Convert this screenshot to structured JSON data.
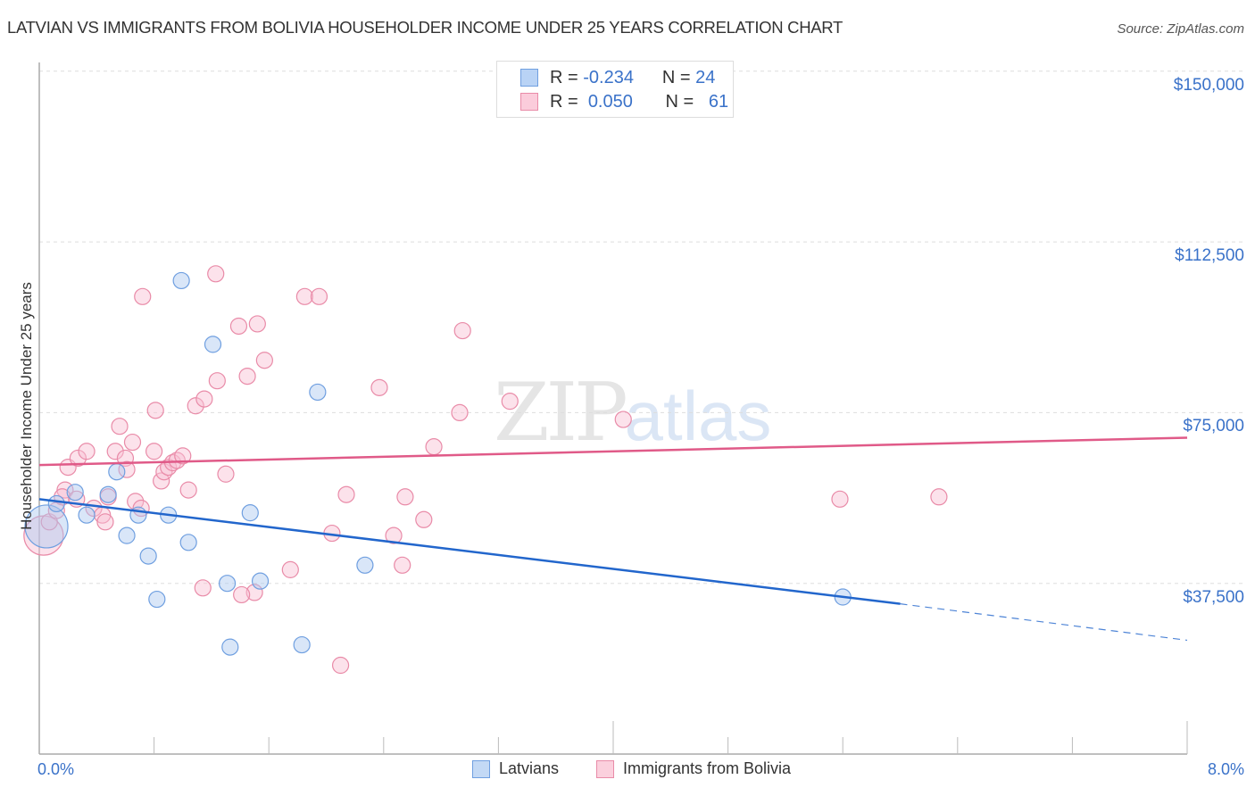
{
  "header": {
    "title": "LATVIAN VS IMMIGRANTS FROM BOLIVIA HOUSEHOLDER INCOME UNDER 25 YEARS CORRELATION CHART",
    "source": "Source: ZipAtlas.com"
  },
  "legend_stats": {
    "rows": [
      {
        "r_label": "R =",
        "r_value": "-0.234",
        "n_label": "N =",
        "n_value": "24",
        "color": "#a9c8f0",
        "border": "#6f9fe0"
      },
      {
        "r_label": "R =",
        "r_value": " 0.050",
        "n_label": "N =",
        "n_value": " 61",
        "color": "#f9c3d4",
        "border": "#e98ba8"
      }
    ]
  },
  "axes": {
    "y_label": "Householder Income Under 25 years",
    "y_ticks": [
      "$150,000",
      "$112,500",
      "$75,000",
      "$37,500"
    ],
    "x_ticks": [
      "0.0%",
      "8.0%"
    ]
  },
  "bottom_legend": {
    "items": [
      {
        "label": "Latvians",
        "color": "#c3d9f5",
        "border": "#6f9fe0"
      },
      {
        "label": "Immigrants from Bolivia",
        "color": "#fbd0dd",
        "border": "#e98ba8"
      }
    ]
  },
  "watermark": {
    "zip": "ZIP",
    "atlas": "atlas"
  },
  "colors": {
    "latvians_line": "#2266cc",
    "bolivia_line": "#e05a88",
    "tick_text": "#3a72c9",
    "grid": "#dddddd"
  },
  "chart_data": {
    "type": "scatter",
    "title": "LATVIAN VS IMMIGRANTS FROM BOLIVIA HOUSEHOLDER INCOME UNDER 25 YEARS CORRELATION CHART",
    "xlabel": "",
    "ylabel": "Householder Income Under 25 years",
    "xlim": [
      0,
      8
    ],
    "ylim": [
      0,
      153000
    ],
    "y_ticks": [
      37500,
      75000,
      112500,
      150000
    ],
    "x_ticks": [
      0,
      8
    ],
    "grid": true,
    "legend_position": "top-center",
    "series": [
      {
        "name": "Latvians",
        "R": -0.234,
        "N": 24,
        "trend": {
          "x0": 0,
          "y0": 56000,
          "x1": 6.0,
          "y1": 33000,
          "dashed_to_x": 8.0,
          "dashed_to_y": 25000
        },
        "points": [
          {
            "x": 0.05,
            "y": 50000,
            "size": 24
          },
          {
            "x": 0.12,
            "y": 55000
          },
          {
            "x": 0.25,
            "y": 57500
          },
          {
            "x": 0.33,
            "y": 52500
          },
          {
            "x": 0.48,
            "y": 57000
          },
          {
            "x": 0.54,
            "y": 62000
          },
          {
            "x": 0.61,
            "y": 48000
          },
          {
            "x": 0.69,
            "y": 52500
          },
          {
            "x": 0.76,
            "y": 43500
          },
          {
            "x": 0.82,
            "y": 34000
          },
          {
            "x": 0.9,
            "y": 52500
          },
          {
            "x": 0.99,
            "y": 104000
          },
          {
            "x": 1.04,
            "y": 46500
          },
          {
            "x": 1.21,
            "y": 90000
          },
          {
            "x": 1.31,
            "y": 37500
          },
          {
            "x": 1.33,
            "y": 23500
          },
          {
            "x": 1.47,
            "y": 53000
          },
          {
            "x": 1.54,
            "y": 38000
          },
          {
            "x": 1.83,
            "y": 24000
          },
          {
            "x": 1.94,
            "y": 79500
          },
          {
            "x": 2.27,
            "y": 41500
          },
          {
            "x": 5.6,
            "y": 34500
          }
        ]
      },
      {
        "name": "Immigrants from Bolivia",
        "R": 0.05,
        "N": 61,
        "trend": {
          "x0": 0,
          "y0": 63500,
          "x1": 8.0,
          "y1": 69500
        },
        "points": [
          {
            "x": 0.03,
            "y": 48000,
            "size": 22
          },
          {
            "x": 0.07,
            "y": 51000
          },
          {
            "x": 0.12,
            "y": 53500
          },
          {
            "x": 0.18,
            "y": 58000
          },
          {
            "x": 0.16,
            "y": 56500
          },
          {
            "x": 0.2,
            "y": 63000
          },
          {
            "x": 0.26,
            "y": 56000
          },
          {
            "x": 0.27,
            "y": 65000
          },
          {
            "x": 0.33,
            "y": 66500
          },
          {
            "x": 0.38,
            "y": 54000
          },
          {
            "x": 0.44,
            "y": 52500
          },
          {
            "x": 0.46,
            "y": 51000
          },
          {
            "x": 0.48,
            "y": 56500
          },
          {
            "x": 0.53,
            "y": 66500
          },
          {
            "x": 0.56,
            "y": 72000
          },
          {
            "x": 0.6,
            "y": 65000
          },
          {
            "x": 0.61,
            "y": 62500
          },
          {
            "x": 0.65,
            "y": 68500
          },
          {
            "x": 0.67,
            "y": 55500
          },
          {
            "x": 0.71,
            "y": 54000
          },
          {
            "x": 0.72,
            "y": 100500
          },
          {
            "x": 0.8,
            "y": 66500
          },
          {
            "x": 0.81,
            "y": 75500
          },
          {
            "x": 0.85,
            "y": 60000
          },
          {
            "x": 0.87,
            "y": 62000
          },
          {
            "x": 0.9,
            "y": 63000
          },
          {
            "x": 0.93,
            "y": 64000
          },
          {
            "x": 0.96,
            "y": 64500
          },
          {
            "x": 1.0,
            "y": 65500
          },
          {
            "x": 1.04,
            "y": 58000
          },
          {
            "x": 1.09,
            "y": 76500
          },
          {
            "x": 1.15,
            "y": 78000
          },
          {
            "x": 1.14,
            "y": 36500
          },
          {
            "x": 1.23,
            "y": 105500
          },
          {
            "x": 1.24,
            "y": 82000
          },
          {
            "x": 1.3,
            "y": 61500
          },
          {
            "x": 1.39,
            "y": 94000
          },
          {
            "x": 1.45,
            "y": 83000
          },
          {
            "x": 1.5,
            "y": 35500
          },
          {
            "x": 1.41,
            "y": 35000
          },
          {
            "x": 1.52,
            "y": 94500
          },
          {
            "x": 1.57,
            "y": 86500
          },
          {
            "x": 1.75,
            "y": 40500
          },
          {
            "x": 1.85,
            "y": 100500
          },
          {
            "x": 1.95,
            "y": 100500
          },
          {
            "x": 2.04,
            "y": 48500
          },
          {
            "x": 2.1,
            "y": 19500
          },
          {
            "x": 2.14,
            "y": 57000
          },
          {
            "x": 2.37,
            "y": 80500
          },
          {
            "x": 2.47,
            "y": 48000
          },
          {
            "x": 2.53,
            "y": 41500
          },
          {
            "x": 2.55,
            "y": 56500
          },
          {
            "x": 2.68,
            "y": 51500
          },
          {
            "x": 2.75,
            "y": 67500
          },
          {
            "x": 2.93,
            "y": 75000
          },
          {
            "x": 2.95,
            "y": 93000
          },
          {
            "x": 3.28,
            "y": 77500
          },
          {
            "x": 4.07,
            "y": 73500
          },
          {
            "x": 5.58,
            "y": 56000
          },
          {
            "x": 6.27,
            "y": 56500
          }
        ]
      }
    ]
  }
}
